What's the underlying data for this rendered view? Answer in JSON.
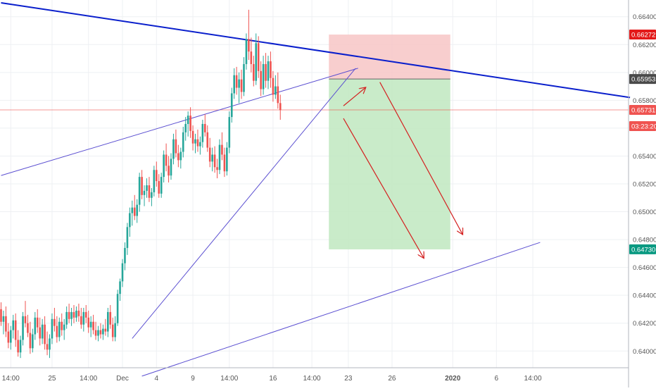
{
  "colors": {
    "up": "#26a69a",
    "down": "#ef5350",
    "trend_blue": "#0a1fcc",
    "channel": "#5b4fd1",
    "arrow": "#d42020",
    "stop_zone": "#f7c5c5",
    "target_zone": "#bfe8bf",
    "grid": "#eef0f3",
    "axis_text": "#555555"
  },
  "chart_data": {
    "type": "candlestick",
    "symbol_pair_note": "",
    "y_axis": {
      "range": [
        0.6388,
        0.6652
      ],
      "ticks": [
        "0.64000",
        "0.64200",
        "0.64400",
        "0.64600",
        "0.64800",
        "0.65000",
        "0.65200",
        "0.65400",
        "0.65600",
        "0.65800",
        "0.66000",
        "0.66200",
        "0.66400"
      ],
      "tick_values": [
        0.64,
        0.642,
        0.644,
        0.646,
        0.648,
        0.65,
        0.652,
        0.654,
        0.656,
        0.658,
        0.66,
        0.662,
        0.664
      ]
    },
    "x_axis": {
      "ticks": [
        {
          "label": "14:00",
          "bar": 4
        },
        {
          "label": "25",
          "bar": 21
        },
        {
          "label": "14:00",
          "bar": 36
        },
        {
          "label": "Dec",
          "bar": 50
        },
        {
          "label": "4",
          "bar": 64
        },
        {
          "label": "9",
          "bar": 79
        },
        {
          "label": "14:00",
          "bar": 94
        },
        {
          "label": "16",
          "bar": 112
        },
        {
          "label": "14:00",
          "bar": 128
        },
        {
          "label": "23",
          "bar": 143
        },
        {
          "label": "26",
          "bar": 161
        },
        {
          "label": "2020",
          "bar": 186
        },
        {
          "label": "6",
          "bar": 204
        },
        {
          "label": "14:00",
          "bar": 219
        }
      ]
    },
    "price_labels": [
      {
        "text": "0.66272",
        "value": 0.66272,
        "bg": "#e31919",
        "fg": "#ffffff"
      },
      {
        "text": "0.65953",
        "value": 0.65953,
        "bg": "#4a4a4a",
        "fg": "#ffffff"
      },
      {
        "text": "0.65731",
        "value": 0.65731,
        "bg": "#ef5350",
        "fg": "#ffffff"
      },
      {
        "text": "03:23:20",
        "value": 0.65615,
        "bg": "#ef5350",
        "fg": "#ffffff"
      },
      {
        "text": "0.64730",
        "value": 0.6473,
        "bg": "#089981",
        "fg": "#ffffff"
      }
    ],
    "current_price_line": 0.65731,
    "position": {
      "entry": 0.65953,
      "stop": 0.66272,
      "target": 0.6473,
      "from_bar": 135,
      "to_bar": 185
    },
    "candles": [
      [
        0.643,
        0.6435,
        0.6418,
        0.6421
      ],
      [
        0.6421,
        0.6429,
        0.6412,
        0.6425
      ],
      [
        0.6425,
        0.6432,
        0.641,
        0.6414
      ],
      [
        0.6414,
        0.642,
        0.6402,
        0.6406
      ],
      [
        0.6406,
        0.6418,
        0.6401,
        0.6415
      ],
      [
        0.6415,
        0.6426,
        0.6409,
        0.6422
      ],
      [
        0.6422,
        0.6427,
        0.6403,
        0.6408
      ],
      [
        0.6408,
        0.6415,
        0.6396,
        0.6399
      ],
      [
        0.6399,
        0.6411,
        0.6395,
        0.6408
      ],
      [
        0.6408,
        0.6428,
        0.6404,
        0.6425
      ],
      [
        0.6425,
        0.6436,
        0.6417,
        0.642
      ],
      [
        0.642,
        0.6426,
        0.641,
        0.6413
      ],
      [
        0.6413,
        0.6421,
        0.6398,
        0.6402
      ],
      [
        0.6402,
        0.6416,
        0.6399,
        0.6412
      ],
      [
        0.6412,
        0.6428,
        0.6408,
        0.6424
      ],
      [
        0.6424,
        0.643,
        0.6413,
        0.6417
      ],
      [
        0.6417,
        0.6424,
        0.6404,
        0.6409
      ],
      [
        0.6409,
        0.6423,
        0.6405,
        0.6419
      ],
      [
        0.6419,
        0.6425,
        0.6401,
        0.6405
      ],
      [
        0.6405,
        0.6414,
        0.6397,
        0.6401
      ],
      [
        0.6401,
        0.6412,
        0.6395,
        0.6409
      ],
      [
        0.6409,
        0.6427,
        0.6405,
        0.6423
      ],
      [
        0.6423,
        0.6431,
        0.6414,
        0.6418
      ],
      [
        0.6418,
        0.6425,
        0.6406,
        0.641
      ],
      [
        0.641,
        0.6424,
        0.6407,
        0.6421
      ],
      [
        0.6421,
        0.6427,
        0.6411,
        0.6415
      ],
      [
        0.6415,
        0.6423,
        0.6408,
        0.6419
      ],
      [
        0.6419,
        0.6432,
        0.6416,
        0.6428
      ],
      [
        0.6428,
        0.6434,
        0.642,
        0.6423
      ],
      [
        0.6423,
        0.6431,
        0.6418,
        0.6428
      ],
      [
        0.6428,
        0.6433,
        0.642,
        0.6424
      ],
      [
        0.6424,
        0.6432,
        0.6421,
        0.6429
      ],
      [
        0.6429,
        0.6434,
        0.6421,
        0.6425
      ],
      [
        0.6425,
        0.6431,
        0.6416,
        0.6419
      ],
      [
        0.6419,
        0.6431,
        0.6414,
        0.6428
      ],
      [
        0.6428,
        0.6433,
        0.642,
        0.6424
      ],
      [
        0.6424,
        0.6429,
        0.6413,
        0.6417
      ],
      [
        0.6417,
        0.6425,
        0.641,
        0.6421
      ],
      [
        0.6421,
        0.6426,
        0.6412,
        0.6415
      ],
      [
        0.6415,
        0.6421,
        0.6408,
        0.6411
      ],
      [
        0.6411,
        0.6418,
        0.6407,
        0.6415
      ],
      [
        0.6415,
        0.642,
        0.6409,
        0.6412
      ],
      [
        0.6412,
        0.6419,
        0.6408,
        0.6416
      ],
      [
        0.6416,
        0.6423,
        0.6411,
        0.6414
      ],
      [
        0.6414,
        0.6431,
        0.641,
        0.6428
      ],
      [
        0.6428,
        0.6433,
        0.6416,
        0.6419
      ],
      [
        0.6419,
        0.6424,
        0.6407,
        0.641
      ],
      [
        0.641,
        0.6425,
        0.6407,
        0.642
      ],
      [
        0.642,
        0.6444,
        0.6418,
        0.6441
      ],
      [
        0.6441,
        0.6452,
        0.6436,
        0.645
      ],
      [
        0.645,
        0.6466,
        0.6446,
        0.6463
      ],
      [
        0.6463,
        0.6478,
        0.6458,
        0.6474
      ],
      [
        0.6474,
        0.6492,
        0.6469,
        0.6489
      ],
      [
        0.6489,
        0.6503,
        0.6482,
        0.6499
      ],
      [
        0.6499,
        0.6508,
        0.649,
        0.6503
      ],
      [
        0.6503,
        0.6512,
        0.6494,
        0.6497
      ],
      [
        0.6497,
        0.6509,
        0.6492,
        0.6505
      ],
      [
        0.6505,
        0.6528,
        0.65,
        0.6525
      ],
      [
        0.6525,
        0.653,
        0.6509,
        0.6512
      ],
      [
        0.6512,
        0.6519,
        0.6504,
        0.6515
      ],
      [
        0.6515,
        0.6524,
        0.651,
        0.6519
      ],
      [
        0.6519,
        0.6525,
        0.6507,
        0.651
      ],
      [
        0.651,
        0.6517,
        0.6504,
        0.6514
      ],
      [
        0.6514,
        0.6533,
        0.6511,
        0.653
      ],
      [
        0.653,
        0.6536,
        0.6518,
        0.6522
      ],
      [
        0.6522,
        0.6527,
        0.651,
        0.6513
      ],
      [
        0.6513,
        0.6528,
        0.651,
        0.6525
      ],
      [
        0.6525,
        0.6544,
        0.6521,
        0.6541
      ],
      [
        0.6541,
        0.6549,
        0.6529,
        0.6533
      ],
      [
        0.6533,
        0.654,
        0.6521,
        0.6526
      ],
      [
        0.6526,
        0.6542,
        0.6523,
        0.6538
      ],
      [
        0.6538,
        0.6556,
        0.6534,
        0.6552
      ],
      [
        0.6552,
        0.6559,
        0.6539,
        0.6542
      ],
      [
        0.6542,
        0.6548,
        0.6532,
        0.6537
      ],
      [
        0.6537,
        0.6546,
        0.6531,
        0.6543
      ],
      [
        0.6543,
        0.6561,
        0.6539,
        0.6557
      ],
      [
        0.6557,
        0.6568,
        0.6551,
        0.6563
      ],
      [
        0.6563,
        0.6572,
        0.6554,
        0.6569
      ],
      [
        0.6569,
        0.6575,
        0.6553,
        0.6558
      ],
      [
        0.6558,
        0.6562,
        0.6544,
        0.6549
      ],
      [
        0.6549,
        0.6556,
        0.6542,
        0.6552
      ],
      [
        0.6552,
        0.6559,
        0.6543,
        0.6547
      ],
      [
        0.6547,
        0.6554,
        0.6541,
        0.655
      ],
      [
        0.655,
        0.6566,
        0.6546,
        0.6563
      ],
      [
        0.6563,
        0.657,
        0.6554,
        0.6557
      ],
      [
        0.6557,
        0.6562,
        0.6543,
        0.6546
      ],
      [
        0.6546,
        0.6553,
        0.6532,
        0.6536
      ],
      [
        0.6536,
        0.6546,
        0.6529,
        0.6541
      ],
      [
        0.6541,
        0.6547,
        0.6528,
        0.6532
      ],
      [
        0.6532,
        0.6538,
        0.6524,
        0.653
      ],
      [
        0.653,
        0.6552,
        0.6527,
        0.6548
      ],
      [
        0.6548,
        0.6557,
        0.6537,
        0.6541
      ],
      [
        0.6541,
        0.6546,
        0.6525,
        0.6529
      ],
      [
        0.6529,
        0.655,
        0.6526,
        0.6546
      ],
      [
        0.6546,
        0.6572,
        0.6542,
        0.6568
      ],
      [
        0.6568,
        0.6589,
        0.6564,
        0.6585
      ],
      [
        0.6585,
        0.6603,
        0.6581,
        0.6598
      ],
      [
        0.6598,
        0.6604,
        0.6584,
        0.6589
      ],
      [
        0.6589,
        0.66,
        0.6578,
        0.6595
      ],
      [
        0.6595,
        0.6602,
        0.6581,
        0.6586
      ],
      [
        0.6586,
        0.6611,
        0.6583,
        0.6606
      ],
      [
        0.6606,
        0.6628,
        0.6602,
        0.6624
      ],
      [
        0.6624,
        0.6645,
        0.6609,
        0.6615
      ],
      [
        0.6615,
        0.6625,
        0.66,
        0.6606
      ],
      [
        0.6606,
        0.6612,
        0.659,
        0.6594
      ],
      [
        0.6594,
        0.6628,
        0.6591,
        0.6621
      ],
      [
        0.6621,
        0.6626,
        0.6596,
        0.6601
      ],
      [
        0.6601,
        0.6608,
        0.6583,
        0.6588
      ],
      [
        0.6588,
        0.6612,
        0.6584,
        0.6606
      ],
      [
        0.6606,
        0.6614,
        0.6589,
        0.6594
      ],
      [
        0.6594,
        0.6612,
        0.6588,
        0.6608
      ],
      [
        0.6608,
        0.6615,
        0.6589,
        0.6596
      ],
      [
        0.6596,
        0.6601,
        0.6579,
        0.6584
      ],
      [
        0.6584,
        0.6598,
        0.6581,
        0.659
      ],
      [
        0.659,
        0.66,
        0.6574,
        0.6578
      ],
      [
        0.6578,
        0.6584,
        0.6566,
        0.6573
      ]
    ]
  }
}
